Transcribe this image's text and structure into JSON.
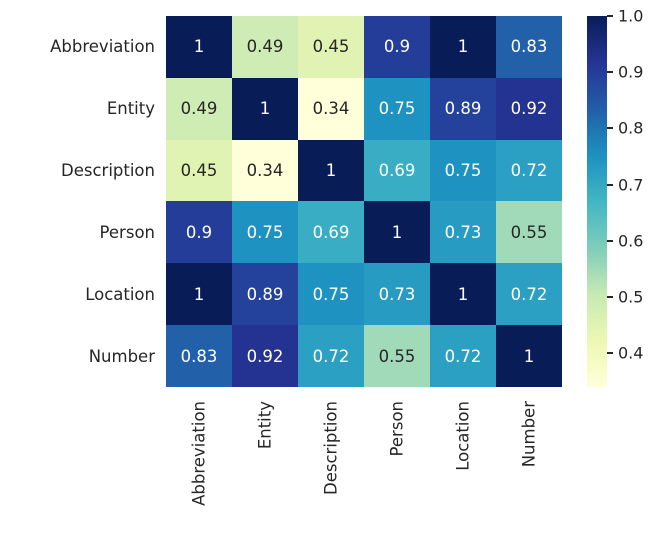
{
  "chart_data": {
    "type": "heatmap",
    "title": "",
    "xlabel": "",
    "ylabel": "",
    "categories": [
      "Abbreviation",
      "Entity",
      "Description",
      "Person",
      "Location",
      "Number"
    ],
    "matrix": [
      [
        1,
        0.49,
        0.45,
        0.9,
        1,
        0.83
      ],
      [
        0.49,
        1,
        0.34,
        0.75,
        0.89,
        0.92
      ],
      [
        0.45,
        0.34,
        1,
        0.69,
        0.75,
        0.72
      ],
      [
        0.9,
        0.75,
        0.69,
        1,
        0.73,
        0.55
      ],
      [
        1,
        0.89,
        0.75,
        0.73,
        1,
        0.72
      ],
      [
        0.83,
        0.92,
        0.72,
        0.55,
        0.72,
        1
      ]
    ],
    "cell_labels": [
      [
        "1",
        "0.49",
        "0.45",
        "0.9",
        "1",
        "0.83"
      ],
      [
        "0.49",
        "1",
        "0.34",
        "0.75",
        "0.89",
        "0.92"
      ],
      [
        "0.45",
        "0.34",
        "1",
        "0.69",
        "0.75",
        "0.72"
      ],
      [
        "0.9",
        "0.75",
        "0.69",
        "1",
        "0.73",
        "0.55"
      ],
      [
        "1",
        "0.89",
        "0.75",
        "0.73",
        "1",
        "0.72"
      ],
      [
        "0.83",
        "0.92",
        "0.72",
        "0.55",
        "0.72",
        "1"
      ]
    ],
    "colorbar": {
      "tick_labels": [
        "1.0",
        "0.9",
        "0.8",
        "0.7",
        "0.6",
        "0.5",
        "0.4"
      ],
      "tick_values": [
        1.0,
        0.9,
        0.8,
        0.7,
        0.6,
        0.5,
        0.4
      ],
      "vmin": 0.34,
      "vmax": 1.0,
      "position": "right"
    },
    "colormap": {
      "name": "YlGnBu",
      "stops": [
        "#ffffd9",
        "#edf8b1",
        "#c7e9b4",
        "#7fcdbb",
        "#41b6c4",
        "#1d91c0",
        "#225ea8",
        "#253494",
        "#081d58"
      ]
    },
    "colors": {
      "annotation_light": "#ffffff",
      "annotation_dark": "#262626",
      "tick_text": "#262626",
      "background": "#ffffff"
    },
    "grid": false,
    "legend_position": "right-colorbar"
  }
}
